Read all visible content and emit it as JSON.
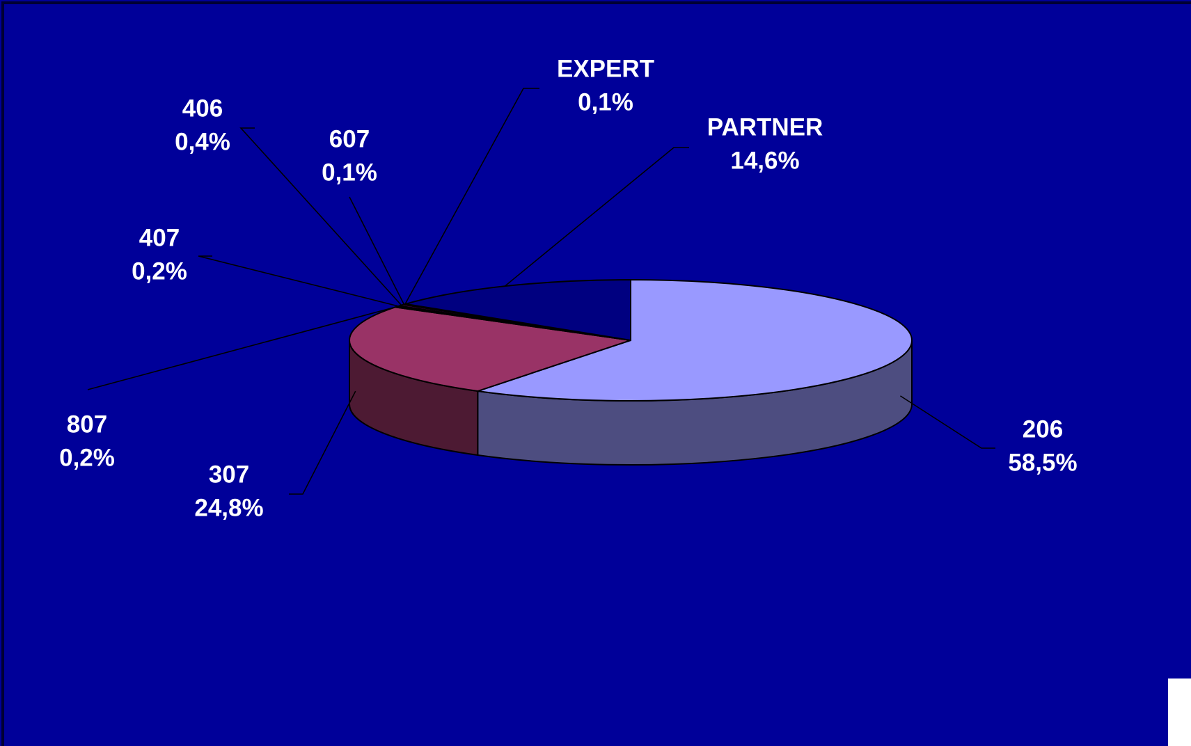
{
  "chart_data": {
    "type": "pie",
    "categories": [
      "206",
      "307",
      "807",
      "407",
      "406",
      "607",
      "EXPERT",
      "PARTNER"
    ],
    "values": [
      58.5,
      24.8,
      0.2,
      0.2,
      0.4,
      0.1,
      0.1,
      14.6
    ],
    "value_labels": [
      "58,5%",
      "24,8%",
      "0,2%",
      "0,2%",
      "0,4%",
      "0,1%",
      "0,1%",
      "14,6%"
    ],
    "colors": [
      "#9999ff",
      "#993366",
      "#ffffcc",
      "#ccffff",
      "#660066",
      "#ff8080",
      "#0066cc",
      "#000080"
    ]
  }
}
